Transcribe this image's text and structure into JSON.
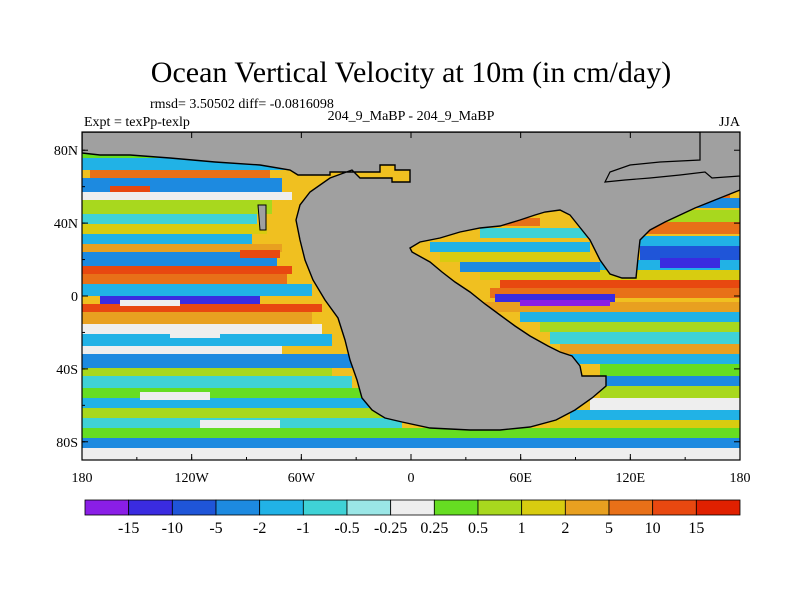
{
  "chart_data": {
    "type": "heatmap",
    "title": "Ocean Vertical Velocity at 10m (in cm/day)",
    "subtitle_stats": "rmsd= 3.50502 diff= -0.0816098",
    "center_label": "204_9_MaBP - 204_9_MaBP",
    "left_label": "Expt = texPp-texlp",
    "right_label": "JJA",
    "x_axis": {
      "range": [
        -180,
        180
      ],
      "ticks": [
        {
          "value": -180,
          "label": "180"
        },
        {
          "value": -120,
          "label": "120W"
        },
        {
          "value": -60,
          "label": "60W"
        },
        {
          "value": 0,
          "label": "0"
        },
        {
          "value": 60,
          "label": "60E"
        },
        {
          "value": 120,
          "label": "120E"
        },
        {
          "value": 180,
          "label": "180"
        }
      ]
    },
    "y_axis": {
      "range": [
        -90,
        90
      ],
      "ticks": [
        {
          "value": 80,
          "label": "80N"
        },
        {
          "value": 40,
          "label": "40N"
        },
        {
          "value": 0,
          "label": "0"
        },
        {
          "value": -40,
          "label": "40S"
        },
        {
          "value": -80,
          "label": "80S"
        }
      ]
    },
    "colorbar": {
      "labels": [
        "-15",
        "-10",
        "-5",
        "-2",
        "-1",
        "-0.5",
        "-0.25",
        "0.25",
        "0.5",
        "1",
        "2",
        "5",
        "10",
        "15"
      ],
      "colors": [
        "#8a1ee6",
        "#3a2be0",
        "#1f55d8",
        "#1d8ae0",
        "#21b2e6",
        "#3fd2d6",
        "#9ae6e6",
        "#eeeeee",
        "#66dd22",
        "#a8d81e",
        "#d8cc10",
        "#e8a020",
        "#e87018",
        "#e84810",
        "#e02000"
      ]
    },
    "land_color": "#a0a0a0"
  }
}
